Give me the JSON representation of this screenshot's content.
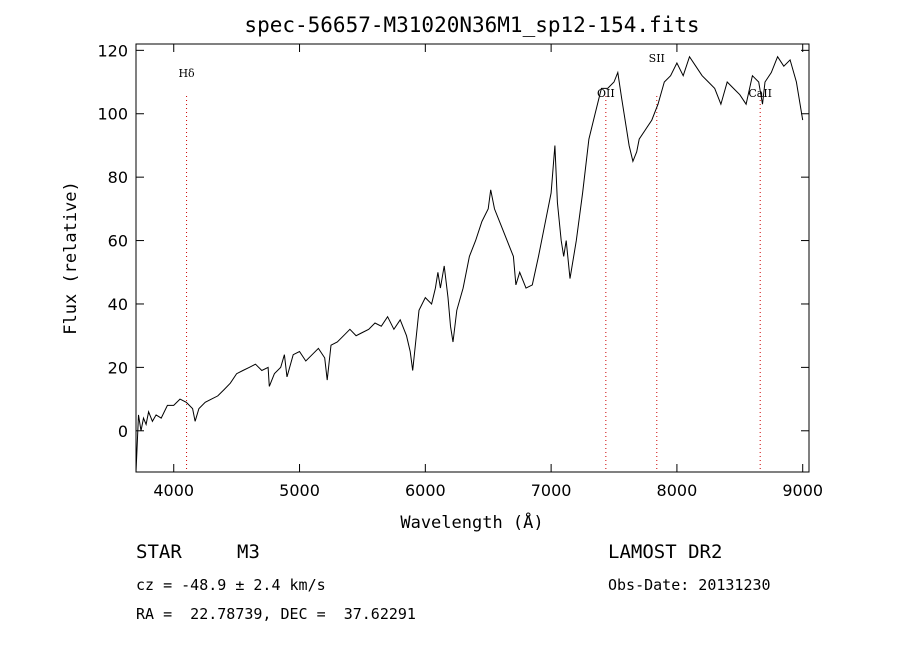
{
  "chart_data": {
    "type": "line",
    "title": "spec-56657-M31020N36M1_sp12-154.fits",
    "xlabel": "Wavelength (Å)",
    "ylabel": "Flux (relative)",
    "xlim": [
      3700,
      9050
    ],
    "ylim": [
      -13,
      122
    ],
    "xticks": [
      4000,
      5000,
      6000,
      7000,
      8000,
      9000
    ],
    "yticks": [
      0,
      20,
      40,
      60,
      80,
      100,
      120
    ],
    "grid": false,
    "line_color": "#000000",
    "marker_color": "#cc0000",
    "series": [
      {
        "x": [
          3700,
          3720,
          3740,
          3760,
          3780,
          3800,
          3830,
          3860,
          3900,
          3950,
          4000,
          4050,
          4100,
          4150,
          4170,
          4200,
          4250,
          4300,
          4350,
          4400,
          4450,
          4500,
          4550,
          4600,
          4650,
          4700,
          4750,
          4760,
          4800,
          4850,
          4880,
          4900,
          4950,
          5000,
          5050,
          5100,
          5150,
          5200,
          5220,
          5250,
          5300,
          5350,
          5400,
          5450,
          5500,
          5550,
          5600,
          5650,
          5700,
          5750,
          5800,
          5850,
          5880,
          5900,
          5950,
          6000,
          6050,
          6080,
          6100,
          6120,
          6150,
          6180,
          6200,
          6220,
          6250,
          6300,
          6350,
          6400,
          6450,
          6500,
          6520,
          6550,
          6600,
          6650,
          6700,
          6720,
          6750,
          6800,
          6850,
          6900,
          6950,
          7000,
          7030,
          7050,
          7080,
          7100,
          7120,
          7150,
          7200,
          7250,
          7300,
          7350,
          7400,
          7450,
          7500,
          7530,
          7560,
          7600,
          7620,
          7650,
          7680,
          7700,
          7750,
          7800,
          7850,
          7900,
          7950,
          8000,
          8050,
          8100,
          8150,
          8200,
          8250,
          8300,
          8350,
          8400,
          8450,
          8500,
          8550,
          8600,
          8650,
          8680,
          8700,
          8750,
          8800,
          8850,
          8900,
          8950,
          9000
        ],
        "y": [
          -13,
          5,
          0,
          4,
          2,
          6,
          3,
          5,
          4,
          8,
          8,
          10,
          9,
          7,
          3,
          7,
          9,
          10,
          11,
          13,
          15,
          18,
          19,
          20,
          21,
          19,
          20,
          14,
          18,
          20,
          24,
          17,
          24,
          25,
          22,
          24,
          26,
          23,
          16,
          27,
          28,
          30,
          32,
          30,
          31,
          32,
          34,
          33,
          36,
          32,
          35,
          30,
          25,
          19,
          38,
          42,
          40,
          45,
          50,
          45,
          52,
          42,
          33,
          28,
          38,
          45,
          55,
          60,
          66,
          70,
          76,
          70,
          65,
          60,
          55,
          46,
          50,
          45,
          46,
          55,
          65,
          75,
          90,
          72,
          60,
          55,
          60,
          48,
          60,
          75,
          92,
          100,
          108,
          108,
          110,
          113,
          105,
          95,
          90,
          85,
          88,
          92,
          95,
          98,
          103,
          110,
          112,
          116,
          112,
          118,
          115,
          112,
          110,
          108,
          103,
          110,
          108,
          106,
          103,
          112,
          110,
          103,
          110,
          113,
          118,
          115,
          117,
          110,
          98
        ]
      }
    ],
    "markers": [
      {
        "label": "Hδ",
        "x": 4102
      },
      {
        "label": "OII",
        "x": 7435
      },
      {
        "label": "SII",
        "x": 7840
      },
      {
        "label": "CaII",
        "x": 8662
      }
    ]
  },
  "info": {
    "object_class": "STAR",
    "subclass": "M3",
    "survey": "LAMOST DR2",
    "cz": "cz = -48.9 ± 2.4 km/s",
    "obs_date": "Obs-Date: 20131230",
    "coords": "RA =  22.78739, DEC =  37.62291"
  }
}
